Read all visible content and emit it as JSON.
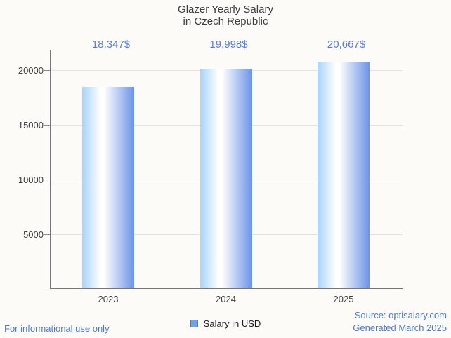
{
  "chart_data": {
    "type": "bar",
    "title": "Glazer Yearly Salary in Czech Republic",
    "title_line1": "Glazer Yearly Salary",
    "title_line2": "in Czech Republic",
    "categories": [
      "2023",
      "2024",
      "2025"
    ],
    "values": [
      18347,
      19998,
      20667
    ],
    "value_labels": [
      "18,347$",
      "19,998$",
      "20,667$"
    ],
    "series_name": "Salary in USD",
    "xlabel": "",
    "ylabel": "",
    "ylim": [
      0,
      21800
    ],
    "yticks": [
      5000,
      10000,
      15000,
      20000
    ],
    "grid": true,
    "legend_position": "bottom",
    "bar_gradient": [
      "#a7d3fb",
      "#ffffff",
      "#6b93e8"
    ]
  },
  "legend": {
    "label": "Salary in USD",
    "marker_color": "#6fa3e8",
    "marker_border": "#4e7dc9"
  },
  "footer": {
    "disclaimer": "For informational use only",
    "source": "Source: optisalary.com",
    "generated": "Generated March 2025"
  },
  "colors": {
    "background": "#fcfbf8",
    "title_text": "#3d3d3d",
    "value_label": "#5b7fd6",
    "footer_text": "#4d79d6",
    "axis": "#757575",
    "gridline": "#e5e3e0"
  }
}
